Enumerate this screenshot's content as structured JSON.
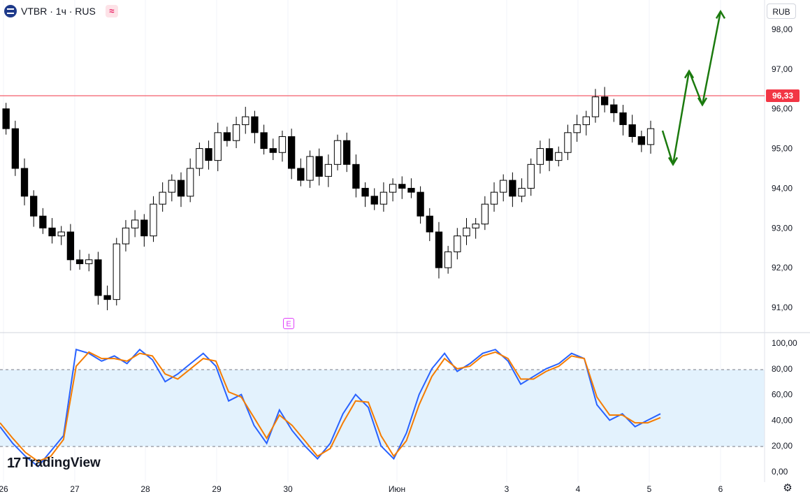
{
  "header": {
    "symbol_title": "VTBR · 1ч · RUS",
    "approx_icon": "approx-icon",
    "symbol_icon": "vtb-logo-icon"
  },
  "currency_button": "RUB",
  "last_price_label": "96,33",
  "earnings_marker": "E",
  "brand": {
    "logo_text": "TradingView",
    "mark": "17"
  },
  "settings_icon": "gear-icon",
  "colors": {
    "price_line": "#f23645",
    "k_line": "#2962ff",
    "d_line": "#f57c00",
    "band_fill": "#e3f2fd",
    "arrow": "#1b7a0e",
    "candle": "#000000"
  },
  "chart_data": [
    {
      "type": "candlestick",
      "title": "VTBR · 1ч · RUS",
      "y_axis_ticks": [
        "98,00",
        "97,00",
        "96,00",
        "95,00",
        "94,00",
        "93,00",
        "92,00",
        "91,00"
      ],
      "ylim": [
        90.4,
        98.6
      ],
      "x_axis_ticks": [
        "26",
        "27",
        "28",
        "29",
        "30",
        "Июн",
        "3",
        "4",
        "5",
        "6"
      ],
      "horizontal_line": 96.33,
      "forecast_path": [
        95.45,
        94.6,
        96.95,
        96.1,
        98.45
      ],
      "close_series": [
        95.5,
        94.5,
        93.8,
        93.3,
        93.0,
        92.8,
        92.9,
        92.2,
        92.1,
        92.2,
        91.3,
        91.2,
        92.6,
        93.0,
        93.2,
        92.8,
        93.6,
        93.9,
        94.2,
        93.8,
        94.5,
        95.0,
        94.7,
        95.4,
        95.2,
        95.6,
        95.8,
        95.4,
        95.0,
        94.9,
        95.3,
        94.5,
        94.2,
        94.8,
        94.3,
        94.6,
        95.2,
        94.6,
        94.0,
        93.8,
        93.6,
        93.9,
        94.1,
        94.0,
        93.9,
        93.3,
        92.9,
        92.0,
        92.4,
        92.8,
        93.0,
        93.1,
        93.6,
        93.9,
        94.2,
        93.8,
        94.0,
        94.6,
        95.0,
        94.7,
        94.9,
        95.4,
        95.6,
        95.8,
        96.3,
        96.1,
        95.9,
        95.6,
        95.3,
        95.1,
        95.5
      ]
    },
    {
      "type": "line",
      "name": "stochastic",
      "y_axis_ticks": [
        "100,00",
        "80,00",
        "60,00",
        "40,00",
        "20,00",
        "0,00"
      ],
      "ylim": [
        0,
        100
      ],
      "band": [
        20,
        80
      ],
      "series": [
        {
          "values": [
            35,
            22,
            12,
            4,
            16,
            28,
            95,
            92,
            86,
            90,
            84,
            95,
            87,
            70,
            76,
            84,
            92,
            82,
            55,
            60,
            36,
            22,
            48,
            32,
            20,
            10,
            22,
            45,
            60,
            50,
            20,
            10,
            30,
            60,
            80,
            92,
            78,
            84,
            92,
            95,
            86,
            68,
            74,
            80,
            84,
            92,
            88,
            52,
            40,
            45,
            35,
            40,
            45
          ]
        },
        {
          "values": [
            38,
            26,
            15,
            8,
            12,
            25,
            82,
            93,
            88,
            88,
            86,
            92,
            90,
            76,
            72,
            80,
            88,
            86,
            62,
            58,
            42,
            26,
            44,
            36,
            24,
            12,
            18,
            38,
            55,
            54,
            28,
            12,
            24,
            52,
            74,
            88,
            80,
            82,
            90,
            93,
            88,
            72,
            72,
            78,
            82,
            90,
            88,
            58,
            44,
            44,
            38,
            38,
            42
          ]
        }
      ]
    }
  ]
}
